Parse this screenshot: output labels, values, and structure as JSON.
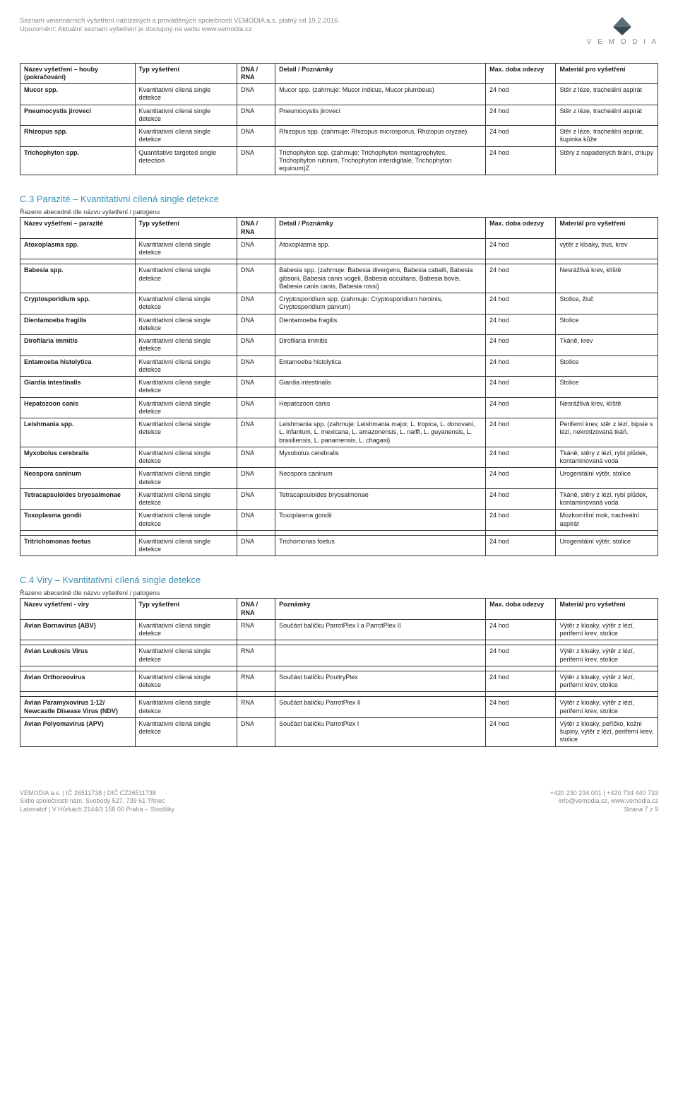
{
  "header": {
    "line1": "Seznam veterinárních vyšetření nabízených a prováděných společností VEMODIA a.s. platný od 19.2.2016.",
    "line2": "Upozornění: Aktuální seznam vyšetření je dostupný na webu www.vemodia.cz",
    "logo_text": "V E M O D I A"
  },
  "table1": {
    "headers": [
      "Název vyšetření – houby (pokračování)",
      "Typ vyšetření",
      "DNA / RNA",
      "Detail / Poznámky",
      "Max. doba odezvy",
      "Materiál pro vyšetření"
    ],
    "rows": [
      [
        "Mucor spp.",
        "Kvantitativní cílená single detekce",
        "DNA",
        "Mucor spp. (zahrnuje: Mucor indicus, Mucor plumbeus)",
        "24 hod",
        "Stěr z léze, tracheální aspirát"
      ],
      [
        "Pneumocystis jiroveci",
        "Kvantitativní cílená single detekce",
        "DNA",
        "Pneumocystis jiroveci",
        "24 hod",
        "Stěr z léze, tracheální aspirát"
      ],
      [
        "Rhizopus spp.",
        "Kvantitativní cílená single detekce",
        "DNA",
        "Rhizopus spp. (zahrnuje: Rhizopus microsporus, Rhizopus oryzae)",
        "24 hod",
        "Stěr z léze, tracheální aspirát, šupinka kůže"
      ],
      [
        "Trichophyton spp.",
        "Quantitative targeted single detection",
        "DNA",
        "Trichophyton spp. (zahrnuje: Trichophyton mentagrophytes, Trichophyton rubrum, Trichophyton interdigitale, Trichophyton equinum)Z",
        "24 hod",
        "Stěry z napadených tkání, chlupy"
      ]
    ]
  },
  "section_c3": {
    "title": "C.3 Parazité – Kvantitativní cílená single detekce",
    "sortnote": "Řazeno abecedně dle názvu vyšetření / patogenu"
  },
  "table2": {
    "headers": [
      "Název vyšetření – parazité",
      "Typ vyšetření",
      "DNA / RNA",
      "Detail / Poznámky",
      "Max. doba odezvy",
      "Materiál pro vyšetření"
    ],
    "rows_a": [
      [
        "Atoxoplasma spp.",
        "Kvantitativní cílená single detekce",
        "DNA",
        "Atoxoplasma spp.",
        "24 hod",
        "výtěr z kloaky, trus, krev"
      ]
    ],
    "rows_b": [
      [
        "Babesia spp.",
        "Kvantitativní cílená single detekce",
        "DNA",
        "Babesia spp. (zahrnuje: Babesia divergens, Babesia caballi, Babesia gibsoni, Babesia canis vogeli, Babesia occultans, Babesia bovis, Babesia canis canis, Babesia rossi)",
        "24 hod",
        "Nesrážlivá krev, klíště"
      ],
      [
        "Cryptosporidium spp.",
        "Kvantitativní cílená single detekce",
        "DNA",
        "Cryptosporidium spp. (zahrnuje: Cryptosporidium hominis, Cryptosporidium parvum)",
        "24 hod",
        "Stolice, žluč"
      ],
      [
        "Dientamoeba fragilis",
        "Kvantitativní cílená single detekce",
        "DNA",
        "Dientamoeba fragilis",
        "24 hod",
        "Stolice"
      ],
      [
        "Dirofilaria immitis",
        "Kvantitativní cílená single detekce",
        "DNA",
        "Dirofilaria immitis",
        "24 hod",
        "Tkáně, krev"
      ],
      [
        "Entamoeba histolytica",
        "Kvantitativní cílená single detekce",
        "DNA",
        "Entamoeba histolytica",
        "24 hod",
        "Stolice"
      ],
      [
        "Giardia intestinalis",
        "Kvantitativní cílená single detekce",
        "DNA",
        "Giardia intestinalis",
        "24 hod",
        "Stolice"
      ],
      [
        "Hepatozoon canis",
        "Kvantitativní cílená single detekce",
        "DNA",
        "Hepatozoon canis",
        "24 hod",
        "Nesrážlivá krev, klíště"
      ],
      [
        "Leishmania spp.",
        "Kvantitativní cílená single detekce",
        "DNA",
        "Leishmania spp. (zahrnuje: Leishmania major, L. tropica, L. donovani, L. infantum, L. mexicana, L. amazonensis, L. naiffi, L. guyanensis, L. brasiliensis, L. panamensis, L. chagasi)",
        "24 hod",
        "Periferní krev, stěr z lézí, bipsie s lézí, nekrotizovaná tkáň."
      ],
      [
        "Myxobolus cerebralis",
        "Kvantitativní cílená single detekce",
        "DNA",
        "Myxobolus cerebralis",
        "24 hod",
        "Tkáně, stěry z lézí, rybí plůdek, kontaminovaná voda"
      ],
      [
        "Neospora caninum",
        "Kvantitativní cílená single detekce",
        "DNA",
        "Neospora caninum",
        "24 hod",
        "Urogenitální výtěr, stolice"
      ],
      [
        "Tetracapsuloides bryosalmonae",
        "Kvantitativní cílená single detekce",
        "DNA",
        "Tetracapsuloides bryosalmonae",
        "24 hod",
        "Tkáně, stěry z lézí, rybí plůdek, kontaminovaná voda"
      ],
      [
        "Toxoplasma gondii",
        "Kvantitativní cílená single detekce",
        "DNA",
        "Toxoplasma gondii",
        "24 hod",
        "Mozkomíšní mok, tracheální aspirát"
      ]
    ],
    "rows_c": [
      [
        "Tritrichomonas foetus",
        "Kvantitativní cílená single detekce",
        "DNA",
        "Trichomonas foetus",
        "24 hod",
        "Urogenitální výtěr, stolice"
      ]
    ]
  },
  "section_c4": {
    "title": "C.4 Viry – Kvantitativní cílená single detekce",
    "sortnote": "Řazeno abecedně dle názvu vyšetření / patogenu"
  },
  "table3": {
    "headers": [
      "Název vyšetření - viry",
      "Typ vyšetření",
      "DNA / RNA",
      "Poznámky",
      "Max. doba odezvy",
      "Materiál pro vyšetření"
    ],
    "rows_a": [
      [
        "Avian Bornavirus (ABV)",
        "Kvantitativní cílená single detekce",
        "RNA",
        "Součást balíčku ParrotPlex I a ParrotPlex II",
        "24 hod",
        "Výtěr z kloaky, výtěr z lézí, periferní krev, stolice"
      ]
    ],
    "rows_b": [
      [
        "Avian Leukosis Virus",
        "Kvantitativní cílená single detekce",
        "RNA",
        "",
        "24 hod",
        "Výtěr z kloaky, výtěr z lézí, periferní krev, stolice"
      ]
    ],
    "rows_c": [
      [
        "Avian Orthoreovirus",
        "Kvantitativní cílená single detekce",
        "RNA",
        "Součást balíčku PoultryPlex",
        "24 hod",
        "Výtěr z kloaky, výtěr z lézí, periferní krev, stolice"
      ]
    ],
    "rows_d": [
      [
        "Avian Paramyxovirus 1-12/ Newcastle Disease Virus (NDV)",
        "Kvantitativní cílená single detekce",
        "RNA",
        "Součást balíčku ParrotPlex II",
        "24 hod",
        "Výtěr z kloaky, výtěr z lézí, periferní krev, stolice"
      ],
      [
        "Avian Polyomavirus (APV)",
        "Kvantitativní cílená single detekce",
        "DNA",
        "Součást balíčku ParrotPlex I",
        "24 hod",
        "Výtěr z kloaky, peříčko, kožní šupiny, výtěr z lézí, periferní krev, stolice"
      ]
    ]
  },
  "footer": {
    "left1": "VEMODIA a.s. | IČ 26511738 | DIČ CZ26511738",
    "left2": "Sídlo společnosti nám. Svobody 527, 739 61 Třinec",
    "left3": "Laboratoř | V Hůrkách 2144/3 158 00  Praha – Stodůlky",
    "right1": "+420 230 234 001 | +420 734 440 733",
    "right2": "info@vemodia.cz, www.vemodia.cz",
    "right3": "Strana 7 z 9"
  }
}
